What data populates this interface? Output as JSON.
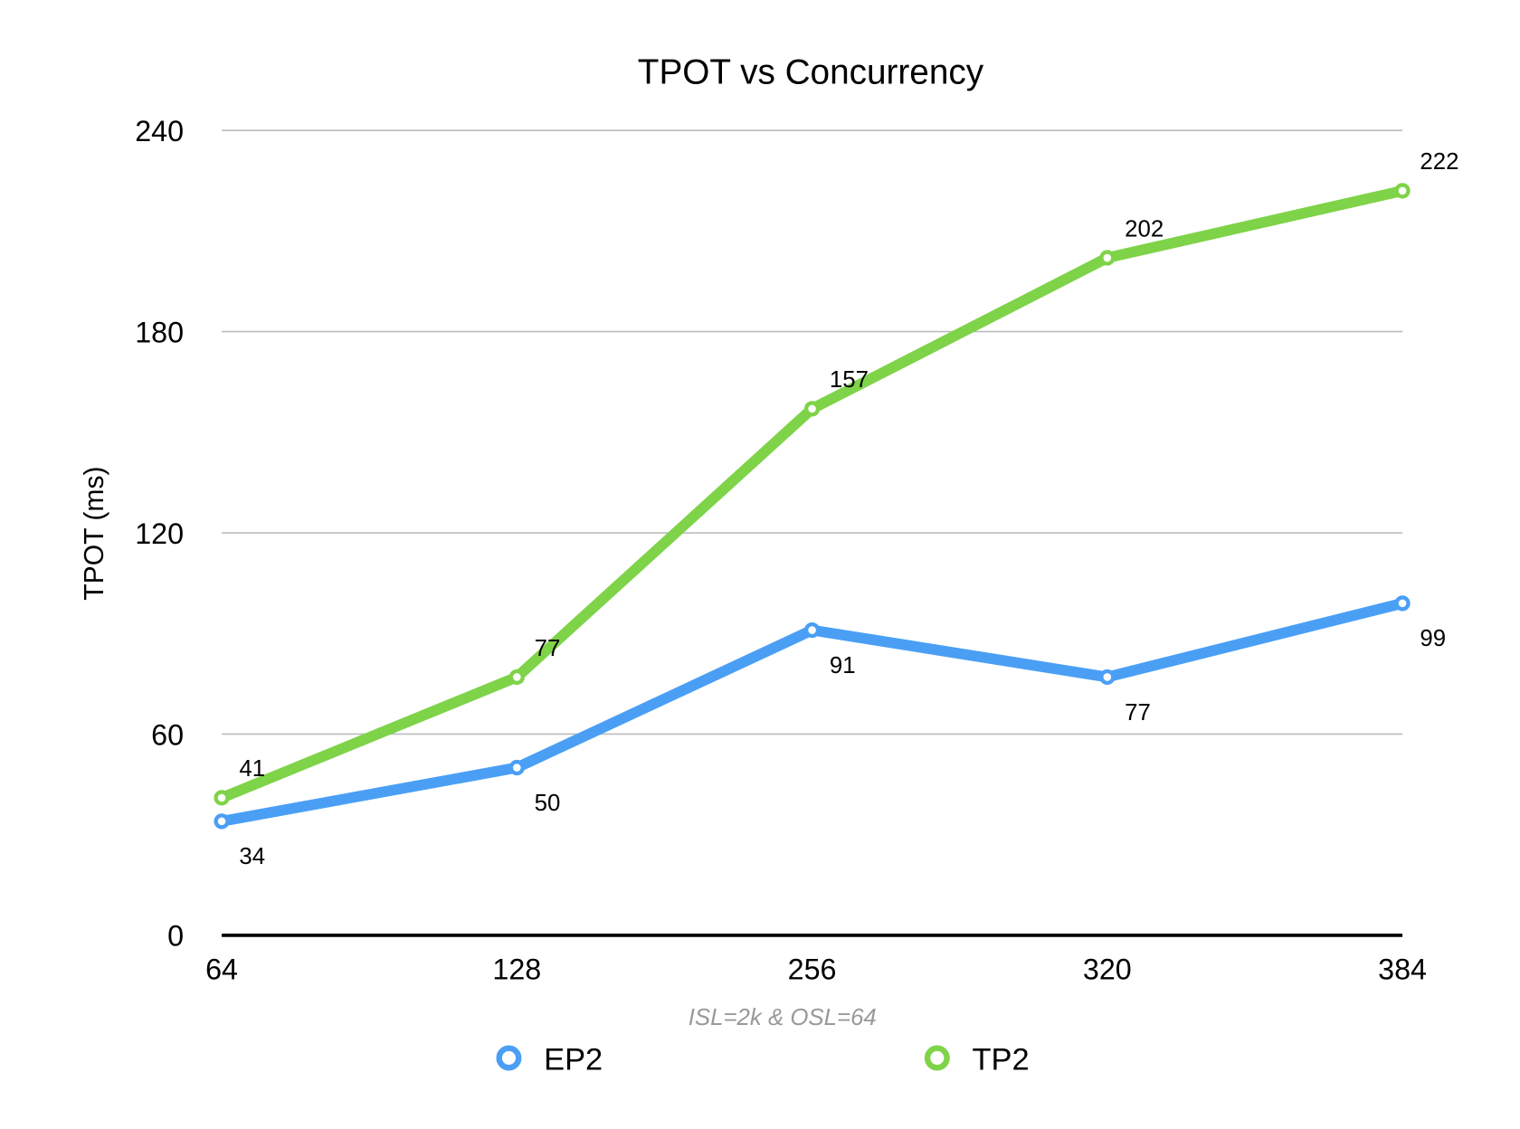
{
  "chart_data": {
    "type": "line",
    "title": "TPOT vs Concurrency",
    "xlabel": "ISL=2k & OSL=64",
    "ylabel": "TPOT (ms)",
    "categories": [
      "64",
      "128",
      "256",
      "320",
      "384"
    ],
    "ylim": [
      0,
      240
    ],
    "yticks": [
      0,
      60,
      120,
      180,
      240
    ],
    "grid": true,
    "legend_position": "bottom",
    "series": [
      {
        "name": "EP2",
        "color": "#4a9ff5",
        "values": [
          34,
          50,
          91,
          77,
          99
        ],
        "label_position": "below"
      },
      {
        "name": "TP2",
        "color": "#7ed348",
        "values": [
          41,
          77,
          157,
          202,
          222
        ],
        "label_position": "above"
      }
    ]
  }
}
